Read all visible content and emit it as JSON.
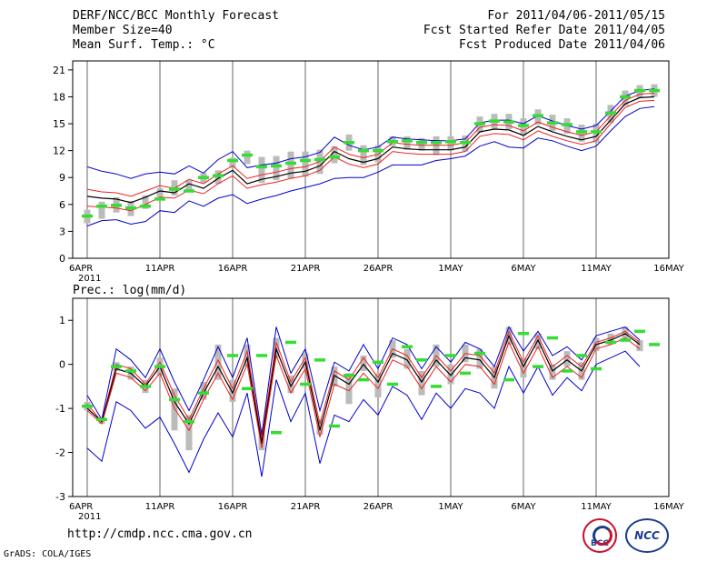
{
  "header": {
    "title": "DERF/NCC/BCC Monthly Forecast",
    "member_size": "Member Size=40",
    "top_variable": "Mean Surf. Temp.: °C",
    "period": "For 2011/04/06-2011/05/15",
    "refer_date": "Fcst Started Refer Date 2011/04/05",
    "produced_date": "Fcst Produced Date 2011/04/06"
  },
  "footer": {
    "url": "http://cmdp.ncc.cma.gov.cn",
    "grads": "GrADS: COLA/IGES",
    "logo_bcc": "BCC",
    "logo_ncc": "NCC"
  },
  "colors": {
    "envelope": "#0000cc",
    "spread": "#ee2222",
    "mean": "#000000",
    "obs": "#33dd33",
    "box": "#bbbbbb",
    "grid": "#000000"
  },
  "chart_data": [
    {
      "type": "line",
      "title": "Mean Surf. Temp.: °C",
      "x_dates": [
        "2011-04-06",
        "2011-04-07",
        "2011-04-08",
        "2011-04-09",
        "2011-04-10",
        "2011-04-11",
        "2011-04-12",
        "2011-04-13",
        "2011-04-14",
        "2011-04-15",
        "2011-04-16",
        "2011-04-17",
        "2011-04-18",
        "2011-04-19",
        "2011-04-20",
        "2011-04-21",
        "2011-04-22",
        "2011-04-23",
        "2011-04-24",
        "2011-04-25",
        "2011-04-26",
        "2011-04-27",
        "2011-04-28",
        "2011-04-29",
        "2011-04-30",
        "2011-05-01",
        "2011-05-02",
        "2011-05-03",
        "2011-05-04",
        "2011-05-05",
        "2011-05-06",
        "2011-05-07",
        "2011-05-08",
        "2011-05-09",
        "2011-05-10",
        "2011-05-11",
        "2011-05-12",
        "2011-05-13",
        "2011-05-14",
        "2011-05-15"
      ],
      "x_tick_labels": [
        "6APR\n2011",
        "11APR",
        "16APR",
        "21APR",
        "26APR",
        "1MAY",
        "6MAY",
        "11MAY",
        "16MAY"
      ],
      "x_tick_index": [
        0,
        5,
        10,
        15,
        20,
        25,
        30,
        35,
        40
      ],
      "xlim_index": [
        -1,
        40
      ],
      "ylim": [
        0,
        22
      ],
      "y_ticks": [
        0,
        3,
        6,
        9,
        12,
        15,
        18,
        21
      ],
      "series": [
        {
          "name": "ensemble max",
          "role": "max",
          "values": [
            10.2,
            9.7,
            9.4,
            8.9,
            9.4,
            9.6,
            9.4,
            10.3,
            9.5,
            11.0,
            11.9,
            10.1,
            10.4,
            10.6,
            11.1,
            11.3,
            11.8,
            13.5,
            12.6,
            12.1,
            12.4,
            13.5,
            13.3,
            13.2,
            13.1,
            13.1,
            13.3,
            15.1,
            15.4,
            15.4,
            15.0,
            15.9,
            15.3,
            14.8,
            14.4,
            14.8,
            16.4,
            18.1,
            18.7,
            18.9
          ]
        },
        {
          "name": "ensemble upper",
          "role": "upper",
          "values": [
            7.7,
            7.4,
            7.3,
            6.9,
            7.5,
            8.1,
            7.8,
            8.8,
            8.3,
            9.4,
            10.3,
            8.9,
            9.3,
            9.6,
            10.0,
            10.2,
            10.8,
            12.4,
            11.6,
            11.2,
            11.6,
            12.9,
            12.7,
            12.6,
            12.6,
            12.6,
            12.9,
            14.6,
            14.9,
            14.8,
            14.2,
            15.2,
            14.6,
            14.1,
            13.7,
            14.1,
            15.9,
            17.6,
            18.3,
            18.4
          ]
        },
        {
          "name": "ensemble mean",
          "role": "mean",
          "values": [
            6.9,
            6.7,
            6.6,
            6.2,
            6.8,
            7.5,
            7.3,
            8.3,
            7.8,
            8.9,
            9.8,
            8.3,
            8.8,
            9.1,
            9.5,
            9.7,
            10.3,
            11.9,
            11.1,
            10.7,
            11.1,
            12.4,
            12.2,
            12.1,
            12.1,
            12.1,
            12.4,
            14.1,
            14.4,
            14.3,
            13.7,
            14.7,
            14.1,
            13.6,
            13.2,
            13.6,
            15.4,
            17.2,
            17.9,
            18.0
          ]
        },
        {
          "name": "ensemble lower",
          "role": "lower",
          "values": [
            5.8,
            5.7,
            5.6,
            5.3,
            6.0,
            6.8,
            6.7,
            7.6,
            7.2,
            8.3,
            9.2,
            7.8,
            8.2,
            8.5,
            8.9,
            9.2,
            9.8,
            11.3,
            10.5,
            10.1,
            10.5,
            11.9,
            11.7,
            11.6,
            11.6,
            11.6,
            11.9,
            13.6,
            13.9,
            13.8,
            13.2,
            14.2,
            13.6,
            13.1,
            12.7,
            13.1,
            15.0,
            16.8,
            17.5,
            17.6
          ]
        },
        {
          "name": "ensemble min",
          "role": "min",
          "values": [
            3.6,
            4.2,
            4.3,
            3.8,
            4.1,
            5.3,
            5.1,
            6.4,
            5.8,
            6.7,
            7.1,
            6.1,
            6.6,
            7.0,
            7.5,
            7.9,
            8.3,
            8.9,
            9.0,
            9.0,
            9.6,
            10.4,
            10.4,
            10.4,
            10.9,
            11.1,
            11.4,
            12.5,
            13.0,
            12.4,
            12.3,
            13.4,
            13.1,
            12.5,
            12.0,
            12.5,
            14.2,
            15.8,
            16.7,
            16.9
          ]
        }
      ],
      "obs": [
        4.7,
        5.8,
        5.9,
        5.6,
        5.8,
        6.6,
        7.7,
        7.5,
        9.0,
        9.2,
        10.9,
        11.5,
        10.2,
        10.3,
        10.6,
        10.9,
        11.0,
        11.3,
        12.9,
        12.0,
        12.0,
        13.0,
        13.1,
        12.9,
        12.9,
        13.0,
        12.9,
        15.0,
        15.3,
        15.2,
        14.8,
        15.9,
        15.1,
        14.9,
        14.1,
        14.1,
        16.2,
        18.0,
        18.7,
        18.7
      ],
      "box_low": [
        3.9,
        4.4,
        5.1,
        4.7,
        5.5,
        6.8,
        7.0,
        7.4,
        8.4,
        8.3,
        10.1,
        10.5,
        8.4,
        8.7,
        8.9,
        9.1,
        9.4,
        10.6,
        12.0,
        10.4,
        10.7,
        12.5,
        12.1,
        12.0,
        11.5,
        12.0,
        11.9,
        14.0,
        14.4,
        14.4,
        13.7,
        14.9,
        14.2,
        13.9,
        13.0,
        12.9,
        15.1,
        17.0,
        17.9,
        18.0
      ],
      "box_high": [
        5.4,
        6.3,
        6.8,
        6.4,
        7.0,
        7.8,
        8.7,
        8.7,
        9.5,
        9.8,
        11.2,
        12.0,
        11.3,
        11.4,
        11.9,
        11.9,
        12.1,
        12.5,
        13.8,
        12.6,
        12.6,
        13.6,
        13.6,
        13.4,
        13.6,
        13.6,
        13.7,
        15.8,
        16.1,
        16.1,
        15.6,
        16.6,
        16.0,
        15.6,
        14.9,
        15.0,
        17.1,
        18.7,
        19.3,
        19.4
      ]
    },
    {
      "type": "line",
      "title": "Prec.: log(mm/d)",
      "x_tick_labels": [
        "6APR\n2011",
        "11APR",
        "16APR",
        "21APR",
        "26APR",
        "1MAY",
        "6MAY",
        "11MAY",
        "16MAY"
      ],
      "x_tick_index": [
        0,
        5,
        10,
        15,
        20,
        25,
        30,
        35,
        40
      ],
      "xlim_index": [
        -1,
        40
      ],
      "ylim": [
        -3,
        1.5
      ],
      "y_ticks": [
        -3,
        -2,
        -1,
        0,
        1
      ],
      "series": [
        {
          "name": "ensemble max",
          "role": "max",
          "values": [
            -0.7,
            -1.25,
            0.35,
            0.1,
            -0.3,
            0.35,
            -0.4,
            -1.05,
            -0.35,
            0.4,
            -0.3,
            0.6,
            -1.6,
            0.85,
            -0.2,
            0.35,
            -1.05,
            0.05,
            -0.15,
            0.45,
            -0.1,
            0.6,
            0.45,
            -0.1,
            0.4,
            0.05,
            0.5,
            0.35,
            -0.05,
            0.85,
            0.3,
            0.75,
            0.2,
            0.4,
            0.1,
            0.65,
            0.75,
            0.85,
            0.55
          ]
        },
        {
          "name": "ensemble upper",
          "role": "upper",
          "values": [
            -0.9,
            -1.3,
            0.0,
            -0.1,
            -0.45,
            0.05,
            -0.7,
            -1.25,
            -0.55,
            0.1,
            -0.55,
            0.3,
            -1.7,
            0.5,
            -0.4,
            0.15,
            -1.35,
            -0.15,
            -0.35,
            0.15,
            -0.3,
            0.35,
            0.2,
            -0.3,
            0.2,
            -0.15,
            0.25,
            0.2,
            -0.2,
            0.75,
            0.05,
            0.65,
            -0.05,
            0.2,
            -0.05,
            0.5,
            0.6,
            0.75,
            0.5
          ]
        },
        {
          "name": "ensemble mean",
          "role": "mean",
          "values": [
            -1.0,
            -1.3,
            -0.1,
            -0.2,
            -0.5,
            -0.05,
            -0.85,
            -1.35,
            -0.65,
            -0.05,
            -0.65,
            0.15,
            -1.8,
            0.35,
            -0.5,
            0.05,
            -1.5,
            -0.25,
            -0.45,
            0.0,
            -0.4,
            0.25,
            0.1,
            -0.4,
            0.1,
            -0.25,
            0.15,
            0.1,
            -0.3,
            0.65,
            -0.05,
            0.55,
            -0.15,
            0.1,
            -0.15,
            0.45,
            0.55,
            0.7,
            0.45
          ]
        },
        {
          "name": "ensemble lower",
          "role": "lower",
          "values": [
            -1.05,
            -1.35,
            -0.2,
            -0.3,
            -0.6,
            -0.2,
            -1.0,
            -1.5,
            -0.8,
            -0.2,
            -0.8,
            0.0,
            -1.9,
            0.2,
            -0.65,
            -0.1,
            -1.65,
            -0.45,
            -0.6,
            -0.2,
            -0.55,
            0.1,
            -0.05,
            -0.55,
            -0.05,
            -0.4,
            0.0,
            -0.05,
            -0.45,
            0.5,
            -0.2,
            0.4,
            -0.3,
            -0.05,
            -0.3,
            0.35,
            0.45,
            0.6,
            0.35
          ]
        },
        {
          "name": "ensemble min",
          "role": "min",
          "values": [
            -1.9,
            -2.2,
            -0.85,
            -1.05,
            -1.45,
            -1.2,
            -1.8,
            -2.45,
            -1.7,
            -1.1,
            -1.65,
            -0.65,
            -2.55,
            -0.35,
            -1.3,
            -0.65,
            -2.25,
            -1.15,
            -1.3,
            -0.8,
            -1.15,
            -0.5,
            -0.7,
            -1.25,
            -0.65,
            -1.0,
            -0.55,
            -0.65,
            -1.0,
            -0.05,
            -0.65,
            -0.05,
            -0.7,
            -0.3,
            -0.6,
            0.0,
            0.15,
            0.3,
            -0.05
          ]
        }
      ],
      "obs": [
        -0.95,
        -1.25,
        -0.05,
        -0.15,
        -0.5,
        -0.05,
        -0.8,
        -1.3,
        -0.65,
        0.2,
        -0.55,
        0.2,
        -1.55,
        0.5,
        -0.45,
        0.1,
        -1.4,
        -0.25,
        -0.35,
        0.05,
        -0.45,
        0.4,
        0.1,
        -0.5,
        0.2,
        -0.2,
        0.25,
        -0.35,
        0.7,
        -0.05,
        0.6,
        -0.15,
        0.2,
        -0.1,
        0.5,
        0.55,
        0.75,
        0.45
      ],
      "obs_index": [
        0,
        1,
        2,
        3,
        4,
        5,
        6,
        7,
        8,
        10,
        11,
        12,
        13,
        14,
        15,
        16,
        17,
        18,
        19,
        20,
        21,
        22,
        23,
        24,
        25,
        26,
        27,
        29,
        30,
        31,
        32,
        33,
        34,
        35,
        36,
        37,
        38,
        39
      ],
      "box_low": [
        -1.05,
        -1.35,
        -0.15,
        -0.35,
        -0.65,
        -0.25,
        -1.5,
        -1.95,
        -0.8,
        -0.35,
        -0.85,
        -0.05,
        -1.95,
        0.15,
        -0.65,
        -0.1,
        -1.6,
        -0.5,
        -0.9,
        -0.15,
        -0.75,
        0.15,
        -0.1,
        -0.7,
        -0.05,
        -0.45,
        0.05,
        -0.1,
        -0.55,
        0.45,
        -0.3,
        0.35,
        -0.35,
        -0.05,
        -0.35,
        0.3,
        0.45,
        0.55,
        0.3
      ],
      "box_high": [
        -0.85,
        -1.2,
        0.05,
        -0.05,
        -0.35,
        0.15,
        -0.55,
        -1.15,
        -0.4,
        0.45,
        -0.35,
        0.45,
        -1.45,
        0.6,
        -0.25,
        0.25,
        -1.25,
        -0.05,
        -0.2,
        0.2,
        -0.2,
        0.55,
        0.35,
        -0.15,
        0.45,
        0.0,
        0.45,
        0.35,
        -0.05,
        0.85,
        0.15,
        0.7,
        0.0,
        0.3,
        0.05,
        0.6,
        0.7,
        0.85,
        0.55
      ]
    }
  ],
  "lower_axis_label": "Prec.: log(mm/d)"
}
